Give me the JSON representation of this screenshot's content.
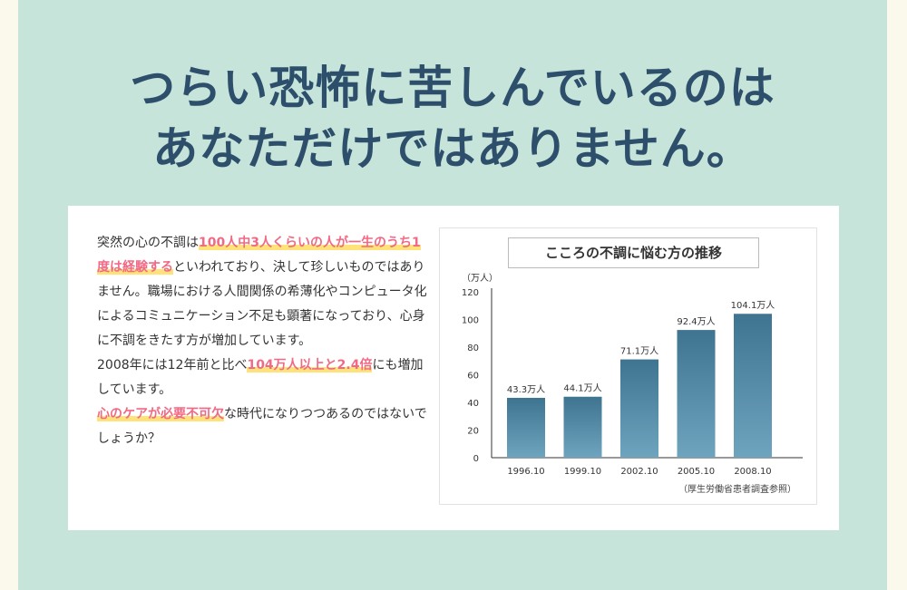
{
  "headline": {
    "line1": "つらい恐怖に苦しんでいるのは",
    "line2": "あなただけではありません。"
  },
  "body": {
    "p1_a": "突然の心の不調は",
    "p1_hl1": "100人中3人くらいの人が一生のうち1度は経験する",
    "p1_b": "といわれており、決して珍しいものではありません。職場における人間関係の希薄化やコンピュータ化によるコミュニケーション不足も顕著になっており、心身に不調をきたす方が増加しています。",
    "p2_a": "2008年には12年前と比べ",
    "p2_hl": "104万人以上と2.4倍",
    "p2_b": "にも増加しています。",
    "p3_hl": "心のケアが必要不可欠",
    "p3_b": "な時代になりつつあるのではないでしょうか？"
  },
  "chart_data": {
    "type": "bar",
    "title": "こころの不調に悩む方の推移",
    "ylabel": "（万人）",
    "categories": [
      "1996.10",
      "1999.10",
      "2002.10",
      "2005.10",
      "2008.10"
    ],
    "values": [
      43.3,
      44.1,
      71.1,
      92.4,
      104.1
    ],
    "value_labels": [
      "43.3万人",
      "44.1万人",
      "71.1万人",
      "92.4万人",
      "104.1万人"
    ],
    "ylim": [
      0,
      120
    ],
    "yticks": [
      0,
      20,
      40,
      60,
      80,
      100,
      120
    ],
    "source": "（厚生労働省患者調査参照）",
    "bar_color_top": "#3f7490",
    "bar_color_bottom": "#6fa4bf"
  }
}
